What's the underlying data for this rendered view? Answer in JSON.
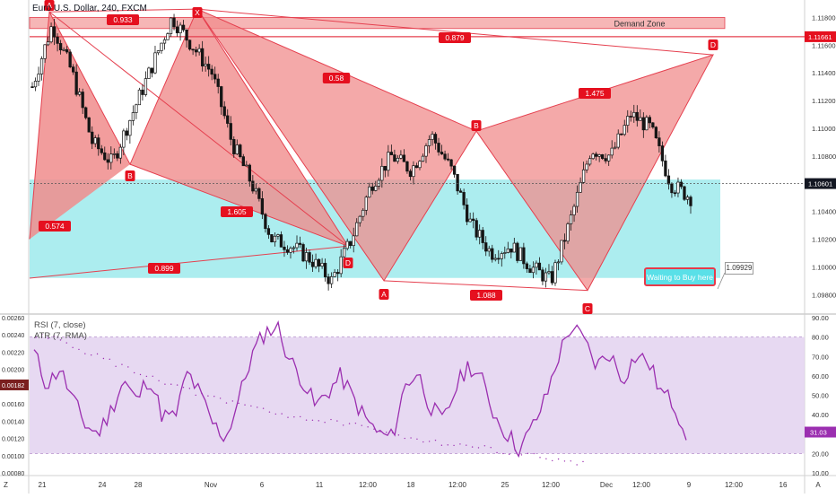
{
  "header": {
    "title": "Euro / U.S. Dollar, 240, FXCM",
    "title_visible": "Euro U.S. Dollar, 240, FXCM"
  },
  "colors": {
    "bear_pattern": "#f08c8c",
    "bull_zone": "#9eeaec",
    "pattern_line": "#e5404f",
    "label_bg": "#e5101f",
    "demand_zone": "#f6b6b6",
    "rsi_line": "#9b2fb0",
    "rsi_band": "#e3d2f0",
    "candle_up": "#151515",
    "candle_down": "#151515",
    "price_tag": "#131722",
    "resistance_tag": "#e5101f"
  },
  "annotations": {
    "demand_zone": "Demand Zone",
    "watch_box": "Waiting to Buy here",
    "callout_value": "1.09929",
    "ratios": [
      "0.933",
      "0.879",
      "0.58",
      "1.475",
      "0.574",
      "1.605",
      "0.899",
      "1.088"
    ],
    "points": [
      "A",
      "X",
      "B",
      "D",
      "A",
      "B",
      "C",
      "D"
    ]
  },
  "price_axis": {
    "ticks": [
      "1.11800",
      "1.11600",
      "1.11400",
      "1.11200",
      "1.11000",
      "1.10800",
      "1.10600",
      "1.10400",
      "1.10200",
      "1.10000",
      "1.09800"
    ],
    "current_price": "1.10601",
    "resistance_price": "1.11661"
  },
  "time_axis": {
    "ticks": [
      "21",
      "24",
      "28",
      "Nov",
      "6",
      "11",
      "12:00",
      "18",
      "12:00",
      "25",
      "12:00",
      "Dec",
      "12:00",
      "9",
      "12:00",
      "16",
      "A"
    ],
    "corner": "Z"
  },
  "indicators": {
    "rsi_label": "RSI (7, close)",
    "atr_label": "ATR (7, RMA)",
    "rsi_value": "31.03",
    "atr_value": "0.00182",
    "left_ticks": [
      "0.00260",
      "0.00240",
      "0.00220",
      "0.00200",
      "0.00180",
      "0.00160",
      "0.00140",
      "0.00120",
      "0.00100",
      "0.00080"
    ],
    "right_ticks": [
      "90.00",
      "80.00",
      "70.00",
      "60.00",
      "50.00",
      "40.00",
      "30.00",
      "20.00",
      "10.00"
    ]
  },
  "chart_data": [
    {
      "type": "candlestick",
      "title": "Euro / U.S. Dollar, 240, FXCM",
      "ylim": [
        1.0975,
        1.119
      ],
      "x": [
        "Oct 21",
        "Oct 24",
        "Oct 28",
        "Nov",
        "Nov 6",
        "Nov 11",
        "Nov 12 12:00",
        "Nov 18",
        "Nov 19 12:00",
        "Nov 25",
        "Nov 26 12:00",
        "Dec",
        "Dec 3 12:00",
        "Dec 9"
      ],
      "close_path": [
        1.113,
        1.1175,
        1.114,
        1.109,
        1.1075,
        1.111,
        1.1145,
        1.118,
        1.116,
        1.114,
        1.109,
        1.106,
        1.102,
        1.1015,
        1.1005,
        1.099,
        1.102,
        1.106,
        1.108,
        1.107,
        1.1095,
        1.107,
        1.103,
        1.101,
        1.1015,
        1.1,
        1.099,
        1.1035,
        1.1085,
        1.108,
        1.111,
        1.11,
        1.106,
        1.105
      ],
      "harmonic_bearish": {
        "points": {
          "X": 1.1186,
          "A": 1.099,
          "B": 1.1098,
          "C": 1.0983,
          "D": 1.1153
        },
        "ratios": {
          "XB": 0.58,
          "AC": 1.475,
          "top_line": 0.879
        }
      },
      "harmonic_bullish": {
        "points": {
          "A": 1.1184,
          "X": 1.1186,
          "B": 1.1074,
          "D": 1.1015
        },
        "ratios": {
          "XB": 0.574,
          "AD": 1.605,
          "bottom_line": 0.899,
          "top_line": 0.933
        }
      },
      "levels": {
        "current": 1.10601,
        "resistance": 1.11661,
        "target": 1.09929
      },
      "zones": {
        "demand": [
          1.1172,
          1.118
        ],
        "buy": [
          1.0992,
          1.1063
        ]
      }
    },
    {
      "type": "line",
      "series": [
        {
          "name": "RSI (7, close)",
          "values": [
            72,
            55,
            64,
            48,
            35,
            30,
            42,
            58,
            47,
            60,
            40,
            38,
            62,
            50,
            35,
            28,
            48,
            70,
            82,
            86,
            68,
            58,
            44,
            52,
            60,
            48,
            37,
            30,
            28,
            55,
            62,
            44,
            36,
            54,
            66,
            58,
            40,
            30,
            22,
            34,
            48,
            70,
            86,
            78,
            65,
            72,
            58,
            70,
            68,
            52,
            46,
            31
          ]
        },
        {
          "name": "ATR (7, RMA)",
          "values": [
            0.0024,
            0.00235,
            0.00222,
            0.0021,
            0.002,
            0.0019,
            0.0018,
            0.0017,
            0.00162,
            0.00158,
            0.0015,
            0.00145,
            0.0014,
            0.00138,
            0.0013,
            0.00125,
            0.0012,
            0.00115,
            0.00112,
            0.00108,
            0.00104,
            0.001,
            0.00094,
            0.0009,
            0.00182
          ]
        }
      ],
      "rsi_band": [
        20,
        80
      ],
      "ylim_rsi": [
        10,
        90
      ],
      "ylim_atr": [
        0.0008,
        0.0026
      ]
    }
  ]
}
